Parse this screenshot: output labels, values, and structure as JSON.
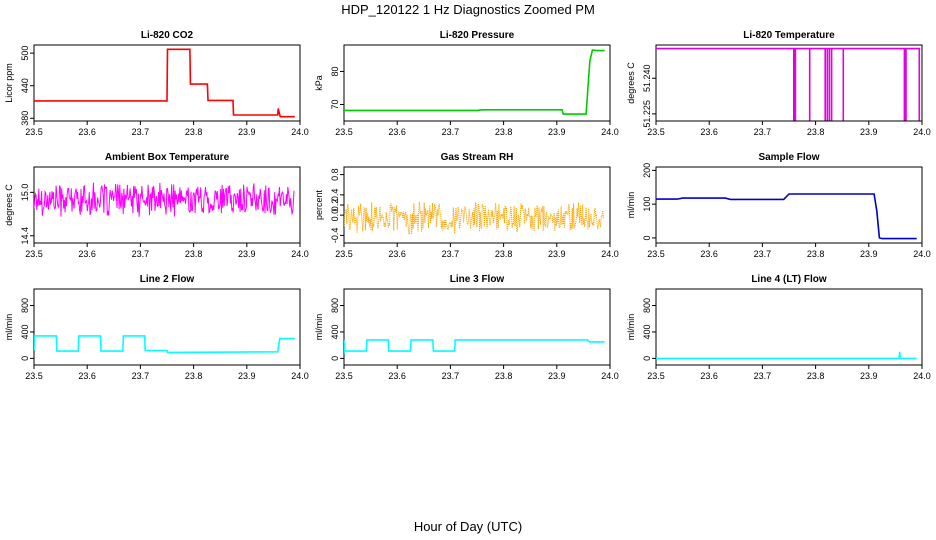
{
  "figure": {
    "title": "HDP_120122  1 Hz Diagnostics Zoomed PM",
    "xlabel": "Hour of Day (UTC)"
  },
  "chart_data": [
    {
      "type": "line",
      "title": "Li-820 CO2",
      "ylabel": "Licor ppm",
      "color": "#ff0000",
      "xlim": [
        23.5,
        24.0
      ],
      "ylim": [
        375,
        515
      ],
      "x_ticks": [
        "23.5",
        "23.6",
        "23.7",
        "23.8",
        "23.9",
        "24.0"
      ],
      "y_ticks": [
        "380",
        "440",
        "500"
      ],
      "x_ticks_values": [
        23.5,
        23.6,
        23.7,
        23.8,
        23.9,
        24.0
      ],
      "y_ticks_values": [
        380,
        440,
        500
      ],
      "series": [
        {
          "x": [
            23.5,
            23.75,
            23.751,
            23.793,
            23.794,
            23.826,
            23.827,
            23.874,
            23.875,
            23.958,
            23.959,
            23.962,
            23.963,
            23.99
          ],
          "y": [
            412,
            412,
            507,
            507,
            443,
            443,
            413,
            413,
            386,
            386,
            398,
            386,
            383,
            383
          ]
        }
      ]
    },
    {
      "type": "line",
      "title": "Li-820 Pressure",
      "ylabel": "kPa",
      "color": "#00cc00",
      "xlim": [
        23.5,
        24.0
      ],
      "ylim": [
        65,
        88
      ],
      "x_ticks": [
        "23.5",
        "23.6",
        "23.7",
        "23.8",
        "23.9",
        "24.0"
      ],
      "y_ticks": [
        "70",
        "80"
      ],
      "x_ticks_values": [
        23.5,
        23.6,
        23.7,
        23.8,
        23.9,
        24.0
      ],
      "y_ticks_values": [
        70,
        80
      ],
      "series": [
        {
          "x": [
            23.5,
            23.75,
            23.76,
            23.91,
            23.912,
            23.955,
            23.958,
            23.962,
            23.967,
            23.975,
            23.99
          ],
          "y": [
            68.2,
            68.2,
            68.4,
            68.4,
            67.1,
            67.1,
            74.0,
            83.0,
            86.5,
            86.3,
            86.3
          ]
        }
      ]
    },
    {
      "type": "line",
      "title": "Li-820 Temperature",
      "ylabel": "degrees C",
      "color": "#e000e0",
      "xlim": [
        23.5,
        24.0
      ],
      "ylim": [
        51.222,
        51.254
      ],
      "x_ticks": [
        "23.5",
        "23.6",
        "23.7",
        "23.8",
        "23.9",
        "24.0"
      ],
      "y_ticks": [
        "51.225",
        "51.240"
      ],
      "x_ticks_values": [
        23.5,
        23.6,
        23.7,
        23.8,
        23.9,
        24.0
      ],
      "y_ticks_values": [
        51.225,
        51.24
      ],
      "series": [
        {
          "x": [
            23.5,
            23.759,
            23.759,
            23.759,
            23.762,
            23.762,
            23.762,
            23.789,
            23.789,
            23.789,
            23.818,
            23.818,
            23.818,
            23.822,
            23.822,
            23.822,
            23.826,
            23.826,
            23.826,
            23.83,
            23.83,
            23.83,
            23.852,
            23.852,
            23.852,
            23.967,
            23.967,
            23.967,
            23.97,
            23.97,
            23.97,
            23.995,
            23.995,
            23.995,
            23.99
          ],
          "y": [
            51.2525,
            51.2525,
            51.2222,
            51.2525,
            51.2525,
            51.2222,
            51.2525,
            51.2525,
            51.2222,
            51.2525,
            51.2525,
            51.2222,
            51.2525,
            51.2525,
            51.2222,
            51.2525,
            51.2525,
            51.2222,
            51.2525,
            51.2525,
            51.2222,
            51.2525,
            51.2525,
            51.2222,
            51.2525,
            51.2525,
            51.2222,
            51.2525,
            51.2525,
            51.2222,
            51.2525,
            51.2525,
            51.2222,
            51.2525,
            51.2525
          ]
        }
      ]
    },
    {
      "type": "line",
      "title": "Ambient Box Temperature",
      "ylabel": "degrees C",
      "color": "#ff00ff",
      "noise": {
        "center": 14.9,
        "amplitude": 0.25,
        "step": 0.0013,
        "seed": 17
      },
      "xlim": [
        23.5,
        24.0
      ],
      "ylim": [
        14.3,
        15.35
      ],
      "x_ticks": [
        "23.5",
        "23.6",
        "23.7",
        "23.8",
        "23.9",
        "24.0"
      ],
      "y_ticks": [
        "14.4",
        "15.0"
      ],
      "x_ticks_values": [
        23.5,
        23.6,
        23.7,
        23.8,
        23.9,
        24.0
      ],
      "y_ticks_values": [
        14.4,
        15.0
      ],
      "series": [
        {
          "x": [
            23.5,
            23.99
          ],
          "y": [
            14.9,
            14.9
          ]
        }
      ]
    },
    {
      "type": "line",
      "title": "Gas Stream RH",
      "ylabel": "percent",
      "color": "#ffa500",
      "noise": {
        "center": -0.05,
        "amplitude": 0.35,
        "step": 0.0013,
        "seed": 29
      },
      "xlim": [
        23.5,
        24.0
      ],
      "ylim": [
        -0.55,
        0.95
      ],
      "x_ticks": [
        "23.5",
        "23.6",
        "23.7",
        "23.8",
        "23.9",
        "24.0"
      ],
      "y_ticks": [
        "-0.4",
        "0.0",
        "0.2",
        "0.4",
        "0.8"
      ],
      "x_ticks_values": [
        23.5,
        23.6,
        23.7,
        23.8,
        23.9,
        24.0
      ],
      "y_ticks_values": [
        -0.4,
        0.0,
        0.2,
        0.4,
        0.8
      ],
      "series": [
        {
          "x": [
            23.5,
            23.99
          ],
          "y": [
            -0.05,
            -0.05
          ]
        }
      ]
    },
    {
      "type": "line",
      "title": "Sample Flow",
      "ylabel": "ml/min",
      "color": "#0000cc",
      "xlim": [
        23.5,
        24.0
      ],
      "ylim": [
        -15,
        210
      ],
      "x_ticks": [
        "23.5",
        "23.6",
        "23.7",
        "23.8",
        "23.9",
        "24.0"
      ],
      "y_ticks": [
        "0",
        "100",
        "200"
      ],
      "x_ticks_values": [
        23.5,
        23.6,
        23.7,
        23.8,
        23.9,
        24.0
      ],
      "y_ticks_values": [
        0,
        100,
        200
      ],
      "series": [
        {
          "x": [
            23.5,
            23.54,
            23.55,
            23.63,
            23.64,
            23.74,
            23.75,
            23.91,
            23.915,
            23.92,
            23.925,
            23.99
          ],
          "y": [
            115,
            115,
            118,
            118,
            114,
            114,
            130,
            130,
            80,
            0,
            -2,
            -2
          ]
        }
      ]
    },
    {
      "type": "line",
      "title": "Line 2 Flow",
      "ylabel": "ml/min",
      "color": "#00ffff",
      "xlim": [
        23.5,
        24.0
      ],
      "ylim": [
        -100,
        1050
      ],
      "x_ticks": [
        "23.5",
        "23.6",
        "23.7",
        "23.8",
        "23.9",
        "24.0"
      ],
      "y_ticks": [
        "0",
        "400",
        "800"
      ],
      "x_ticks_values": [
        23.5,
        23.6,
        23.7,
        23.8,
        23.9,
        24.0
      ],
      "y_ticks_values": [
        0,
        400,
        800
      ],
      "series": [
        {
          "x": [
            23.5,
            23.501,
            23.542,
            23.543,
            23.583,
            23.584,
            23.625,
            23.626,
            23.667,
            23.668,
            23.708,
            23.709,
            23.75,
            23.751,
            23.958,
            23.962,
            23.99
          ],
          "y": [
            120,
            340,
            340,
            110,
            110,
            340,
            340,
            110,
            110,
            340,
            340,
            120,
            120,
            90,
            100,
            300,
            300
          ]
        }
      ]
    },
    {
      "type": "line",
      "title": "Line 3 Flow",
      "ylabel": "ml/min",
      "color": "#00ffff",
      "xlim": [
        23.5,
        24.0
      ],
      "ylim": [
        -100,
        1050
      ],
      "x_ticks": [
        "23.5",
        "23.6",
        "23.7",
        "23.8",
        "23.9",
        "24.0"
      ],
      "y_ticks": [
        "0",
        "400",
        "800"
      ],
      "x_ticks_values": [
        23.5,
        23.6,
        23.7,
        23.8,
        23.9,
        24.0
      ],
      "y_ticks_values": [
        0,
        400,
        800
      ],
      "series": [
        {
          "x": [
            23.5,
            23.501,
            23.502,
            23.542,
            23.543,
            23.583,
            23.584,
            23.625,
            23.626,
            23.667,
            23.668,
            23.708,
            23.709,
            23.958,
            23.962,
            23.99
          ],
          "y": [
            280,
            100,
            110,
            110,
            280,
            280,
            110,
            110,
            280,
            280,
            110,
            110,
            280,
            280,
            250,
            250
          ]
        }
      ]
    },
    {
      "type": "line",
      "title": "Line 4 (LT) Flow",
      "ylabel": "ml/min",
      "color": "#00ffff",
      "xlim": [
        23.5,
        24.0
      ],
      "ylim": [
        -100,
        1050
      ],
      "x_ticks": [
        "23.5",
        "23.6",
        "23.7",
        "23.8",
        "23.9",
        "24.0"
      ],
      "y_ticks": [
        "0",
        "400",
        "800"
      ],
      "x_ticks_values": [
        23.5,
        23.6,
        23.7,
        23.8,
        23.9,
        24.0
      ],
      "y_ticks_values": [
        0,
        400,
        800
      ],
      "series": [
        {
          "x": [
            23.5,
            23.957,
            23.958,
            23.959,
            23.96,
            23.99
          ],
          "y": [
            0,
            0,
            100,
            0,
            0,
            0
          ]
        }
      ]
    }
  ]
}
